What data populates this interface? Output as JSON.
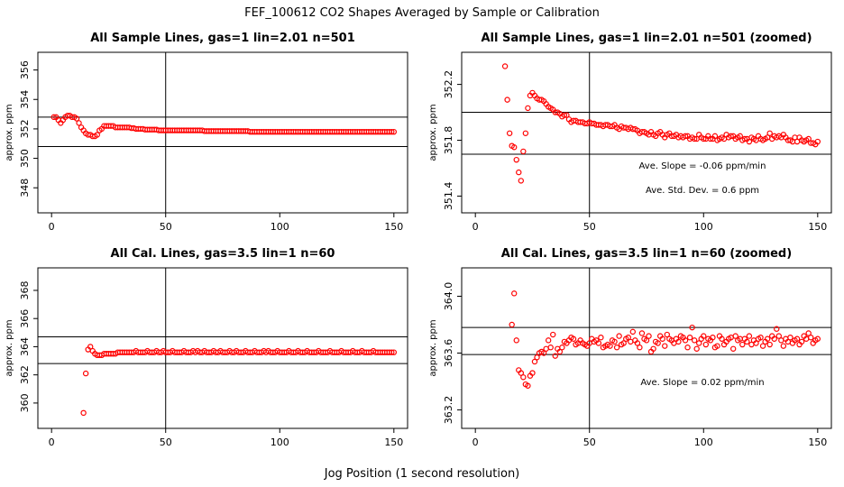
{
  "figure": {
    "title": "FEF_100612  CO2 Shapes Averaged by Sample or Calibration",
    "xlabel": "Jog Position (1 second resolution)"
  },
  "chart_data": [
    {
      "type": "scatter",
      "title": "All Sample Lines, gas=1 lin=2.01 n=501",
      "ylabel": "approx. ppm",
      "xlim": [
        -6,
        156
      ],
      "ylim": [
        346.3,
        357.2
      ],
      "xticks": [
        0,
        50,
        100,
        150
      ],
      "yticks": [
        348,
        350,
        352,
        354,
        356
      ],
      "hlines": [
        352.8,
        350.8
      ],
      "vline": 50,
      "annotations": [],
      "marker_color": "#ff0000",
      "x": [
        1,
        2,
        3,
        4,
        5,
        6,
        7,
        8,
        9,
        10,
        11,
        12,
        13,
        14,
        15,
        16,
        17,
        18,
        19,
        20,
        21,
        22,
        23,
        24,
        25,
        26,
        27,
        28,
        29,
        30,
        31,
        32,
        33,
        34,
        35,
        36,
        37,
        38,
        39,
        40,
        41,
        42,
        43,
        44,
        45,
        46,
        47,
        48,
        49,
        50,
        51,
        52,
        53,
        54,
        55,
        56,
        57,
        58,
        59,
        60,
        61,
        62,
        63,
        64,
        65,
        66,
        67,
        68,
        69,
        70,
        71,
        72,
        73,
        74,
        75,
        76,
        77,
        78,
        79,
        80,
        81,
        82,
        83,
        84,
        85,
        86,
        87,
        88,
        89,
        90,
        91,
        92,
        93,
        94,
        95,
        96,
        97,
        98,
        99,
        100,
        101,
        102,
        103,
        104,
        105,
        106,
        107,
        108,
        109,
        110,
        111,
        112,
        113,
        114,
        115,
        116,
        117,
        118,
        119,
        120,
        121,
        122,
        123,
        124,
        125,
        126,
        127,
        128,
        129,
        130,
        131,
        132,
        133,
        134,
        135,
        136,
        137,
        138,
        139,
        140,
        141,
        142,
        143,
        144,
        145,
        146,
        147,
        148,
        149,
        150
      ],
      "y": [
        352.8,
        352.8,
        352.6,
        352.4,
        352.6,
        352.8,
        352.9,
        352.9,
        352.8,
        352.8,
        352.7,
        352.4,
        352.1,
        351.9,
        351.7,
        351.6,
        351.6,
        351.5,
        351.5,
        351.6,
        351.9,
        352.0,
        352.2,
        352.2,
        352.2,
        352.2,
        352.2,
        352.1,
        352.1,
        352.1,
        352.1,
        352.1,
        352.1,
        352.1,
        352.05,
        352.05,
        352.0,
        352.0,
        352.0,
        352.0,
        351.95,
        351.95,
        351.95,
        351.95,
        351.95,
        351.95,
        351.9,
        351.9,
        351.9,
        351.9,
        351.9,
        351.9,
        351.9,
        351.9,
        351.9,
        351.9,
        351.9,
        351.9,
        351.9,
        351.9,
        351.9,
        351.9,
        351.9,
        351.9,
        351.9,
        351.9,
        351.85,
        351.85,
        351.85,
        351.85,
        351.85,
        351.85,
        351.85,
        351.85,
        351.85,
        351.85,
        351.85,
        351.85,
        351.85,
        351.85,
        351.85,
        351.85,
        351.85,
        351.85,
        351.85,
        351.85,
        351.8,
        351.8,
        351.8,
        351.8,
        351.8,
        351.8,
        351.8,
        351.8,
        351.8,
        351.8,
        351.8,
        351.8,
        351.8,
        351.8,
        351.8,
        351.8,
        351.8,
        351.8,
        351.8,
        351.8,
        351.8,
        351.8,
        351.8,
        351.8,
        351.8,
        351.8,
        351.8,
        351.8,
        351.8,
        351.8,
        351.8,
        351.8,
        351.8,
        351.8,
        351.8,
        351.8,
        351.8,
        351.8,
        351.8,
        351.8,
        351.8,
        351.8,
        351.8,
        351.8,
        351.8,
        351.8,
        351.8,
        351.8,
        351.8,
        351.8,
        351.8,
        351.8,
        351.8,
        351.8,
        351.8,
        351.8,
        351.8,
        351.8,
        351.8,
        351.8,
        351.8,
        351.8,
        351.8,
        351.8
      ]
    },
    {
      "type": "scatter",
      "title": "All Sample Lines, gas=1 lin=2.01 n=501 (zoomed)",
      "ylabel": "approx. ppm",
      "xlim": [
        -6,
        156
      ],
      "ylim": [
        351.28,
        352.43
      ],
      "xticks": [
        0,
        50,
        100,
        150
      ],
      "yticks": [
        351.4,
        351.8,
        352.2
      ],
      "hlines": [
        352.0,
        351.7
      ],
      "vline": 50,
      "annotations": [
        "Ave. Slope =  -0.06  ppm/min",
        "Ave. Std. Dev. =  0.6  ppm"
      ],
      "marker_color": "#ff0000",
      "x": [
        13,
        14,
        15,
        16,
        17,
        18,
        19,
        20,
        21,
        22,
        23,
        24,
        25,
        26,
        27,
        28,
        29,
        30,
        31,
        32,
        33,
        34,
        35,
        36,
        37,
        38,
        39,
        40,
        41,
        42,
        43,
        44,
        45,
        46,
        47,
        48,
        49,
        50,
        51,
        52,
        53,
        54,
        55,
        56,
        57,
        58,
        59,
        60,
        61,
        62,
        63,
        64,
        65,
        66,
        67,
        68,
        69,
        70,
        71,
        72,
        73,
        74,
        75,
        76,
        77,
        78,
        79,
        80,
        81,
        82,
        83,
        84,
        85,
        86,
        87,
        88,
        89,
        90,
        91,
        92,
        93,
        94,
        95,
        96,
        97,
        98,
        99,
        100,
        101,
        102,
        103,
        104,
        105,
        106,
        107,
        108,
        109,
        110,
        111,
        112,
        113,
        114,
        115,
        116,
        117,
        118,
        119,
        120,
        121,
        122,
        123,
        124,
        125,
        126,
        127,
        128,
        129,
        130,
        131,
        132,
        133,
        134,
        135,
        136,
        137,
        138,
        139,
        140,
        141,
        142,
        143,
        144,
        145,
        146,
        147,
        148,
        149,
        150
      ],
      "y": [
        352.33,
        352.09,
        351.85,
        351.76,
        351.75,
        351.66,
        351.57,
        351.51,
        351.72,
        351.85,
        352.03,
        352.12,
        352.14,
        352.12,
        352.1,
        352.09,
        352.09,
        352.08,
        352.06,
        352.04,
        352.03,
        352.02,
        352.0,
        352.0,
        351.99,
        351.97,
        351.98,
        351.98,
        351.95,
        351.93,
        351.94,
        351.94,
        351.93,
        351.93,
        351.93,
        351.92,
        351.92,
        351.93,
        351.92,
        351.92,
        351.91,
        351.91,
        351.91,
        351.9,
        351.91,
        351.91,
        351.9,
        351.9,
        351.91,
        351.89,
        351.88,
        351.9,
        351.89,
        351.89,
        351.88,
        351.89,
        351.88,
        351.88,
        351.87,
        351.85,
        351.86,
        351.86,
        351.85,
        351.84,
        351.86,
        351.84,
        351.83,
        351.85,
        351.86,
        351.84,
        351.82,
        351.84,
        351.85,
        351.83,
        351.83,
        351.84,
        351.82,
        351.83,
        351.82,
        351.83,
        351.83,
        351.81,
        351.82,
        351.81,
        351.81,
        351.84,
        351.82,
        351.81,
        351.81,
        351.83,
        351.81,
        351.81,
        351.83,
        351.8,
        351.81,
        351.82,
        351.81,
        351.84,
        351.82,
        351.83,
        351.83,
        351.81,
        351.82,
        351.83,
        351.8,
        351.81,
        351.81,
        351.79,
        351.82,
        351.81,
        351.8,
        351.83,
        351.81,
        351.8,
        351.81,
        351.82,
        351.85,
        351.81,
        351.83,
        351.82,
        351.83,
        351.82,
        351.84,
        351.82,
        351.8,
        351.8,
        351.79,
        351.82,
        351.79,
        351.82,
        351.8,
        351.79,
        351.8,
        351.81,
        351.78,
        351.78,
        351.77,
        351.79
      ]
    },
    {
      "type": "scatter",
      "title": "All Cal. Lines, gas=3.5 lin=1 n=60",
      "ylabel": "approx. ppm",
      "xlim": [
        -6,
        156
      ],
      "ylim": [
        358.2,
        369.6
      ],
      "xticks": [
        0,
        50,
        100,
        150
      ],
      "yticks": [
        360,
        362,
        364,
        366,
        368
      ],
      "hlines": [
        364.7,
        362.8
      ],
      "vline": 50,
      "annotations": [],
      "marker_color": "#ff0000",
      "x": [
        14,
        15,
        16,
        17,
        18,
        19,
        20,
        21,
        22,
        23,
        24,
        25,
        26,
        27,
        28,
        29,
        30,
        31,
        32,
        33,
        34,
        35,
        36,
        37,
        38,
        39,
        40,
        41,
        42,
        43,
        44,
        45,
        46,
        47,
        48,
        49,
        50,
        51,
        52,
        53,
        54,
        55,
        56,
        57,
        58,
        59,
        60,
        61,
        62,
        63,
        64,
        65,
        66,
        67,
        68,
        69,
        70,
        71,
        72,
        73,
        74,
        75,
        76,
        77,
        78,
        79,
        80,
        81,
        82,
        83,
        84,
        85,
        86,
        87,
        88,
        89,
        90,
        91,
        92,
        93,
        94,
        95,
        96,
        97,
        98,
        99,
        100,
        101,
        102,
        103,
        104,
        105,
        106,
        107,
        108,
        109,
        110,
        111,
        112,
        113,
        114,
        115,
        116,
        117,
        118,
        119,
        120,
        121,
        122,
        123,
        124,
        125,
        126,
        127,
        128,
        129,
        130,
        131,
        132,
        133,
        134,
        135,
        136,
        137,
        138,
        139,
        140,
        141,
        142,
        143,
        144,
        145,
        146,
        147,
        148,
        149,
        150
      ],
      "y": [
        359.3,
        362.1,
        363.8,
        364.0,
        363.7,
        363.5,
        363.4,
        363.4,
        363.4,
        363.5,
        363.5,
        363.5,
        363.5,
        363.5,
        363.5,
        363.6,
        363.6,
        363.6,
        363.6,
        363.6,
        363.6,
        363.6,
        363.6,
        363.7,
        363.6,
        363.6,
        363.6,
        363.6,
        363.7,
        363.6,
        363.6,
        363.6,
        363.7,
        363.6,
        363.6,
        363.7,
        363.6,
        363.6,
        363.6,
        363.7,
        363.6,
        363.6,
        363.6,
        363.6,
        363.7,
        363.6,
        363.6,
        363.6,
        363.7,
        363.6,
        363.7,
        363.6,
        363.6,
        363.7,
        363.6,
        363.6,
        363.6,
        363.7,
        363.6,
        363.6,
        363.7,
        363.6,
        363.6,
        363.6,
        363.7,
        363.6,
        363.6,
        363.7,
        363.6,
        363.6,
        363.6,
        363.7,
        363.6,
        363.6,
        363.6,
        363.7,
        363.6,
        363.6,
        363.6,
        363.7,
        363.6,
        363.7,
        363.6,
        363.6,
        363.6,
        363.7,
        363.6,
        363.6,
        363.6,
        363.6,
        363.7,
        363.6,
        363.6,
        363.6,
        363.7,
        363.6,
        363.6,
        363.6,
        363.7,
        363.6,
        363.6,
        363.6,
        363.6,
        363.7,
        363.6,
        363.6,
        363.6,
        363.6,
        363.7,
        363.6,
        363.6,
        363.6,
        363.6,
        363.7,
        363.6,
        363.6,
        363.6,
        363.6,
        363.7,
        363.6,
        363.6,
        363.6,
        363.7,
        363.6,
        363.6,
        363.6,
        363.6,
        363.7,
        363.6,
        363.6,
        363.6,
        363.6,
        363.6,
        363.6,
        363.6,
        363.6,
        363.6
      ]
    },
    {
      "type": "scatter",
      "title": "All Cal. Lines, gas=3.5 lin=1 n=60 (zoomed)",
      "ylabel": "approx. ppm",
      "xlim": [
        -6,
        156
      ],
      "ylim": [
        363.07,
        364.2
      ],
      "xticks": [
        0,
        50,
        100,
        150
      ],
      "yticks": [
        363.2,
        363.6,
        364.0
      ],
      "hlines": [
        363.78,
        363.59
      ],
      "vline": 50,
      "annotations": [
        "Ave. Slope =  0.02  ppm/min"
      ],
      "marker_color": "#ff0000",
      "x": [
        16,
        17,
        18,
        19,
        20,
        21,
        22,
        23,
        24,
        25,
        26,
        27,
        28,
        29,
        30,
        31,
        32,
        33,
        34,
        35,
        36,
        37,
        38,
        39,
        40,
        41,
        42,
        43,
        44,
        45,
        46,
        47,
        48,
        49,
        50,
        51,
        52,
        53,
        54,
        55,
        56,
        57,
        58,
        59,
        60,
        61,
        62,
        63,
        64,
        65,
        66,
        67,
        68,
        69,
        70,
        71,
        72,
        73,
        74,
        75,
        76,
        77,
        78,
        79,
        80,
        81,
        82,
        83,
        84,
        85,
        86,
        87,
        88,
        89,
        90,
        91,
        92,
        93,
        94,
        95,
        96,
        97,
        98,
        99,
        100,
        101,
        102,
        103,
        104,
        105,
        106,
        107,
        108,
        109,
        110,
        111,
        112,
        113,
        114,
        115,
        116,
        117,
        118,
        119,
        120,
        121,
        122,
        123,
        124,
        125,
        126,
        127,
        128,
        129,
        130,
        131,
        132,
        133,
        134,
        135,
        136,
        137,
        138,
        139,
        140,
        141,
        142,
        143,
        144,
        145,
        146,
        147,
        148,
        149,
        150
      ],
      "y": [
        363.8,
        364.02,
        363.69,
        363.48,
        363.46,
        363.43,
        363.38,
        363.37,
        363.44,
        363.46,
        363.54,
        363.57,
        363.6,
        363.61,
        363.6,
        363.63,
        363.69,
        363.64,
        363.73,
        363.58,
        363.63,
        363.61,
        363.64,
        363.68,
        363.67,
        363.69,
        363.71,
        363.7,
        363.66,
        363.67,
        363.69,
        363.67,
        363.66,
        363.65,
        363.67,
        363.7,
        363.68,
        363.69,
        363.67,
        363.71,
        363.64,
        363.65,
        363.66,
        363.65,
        363.69,
        363.68,
        363.64,
        363.72,
        363.66,
        363.67,
        363.7,
        363.71,
        363.68,
        363.75,
        363.69,
        363.67,
        363.64,
        363.74,
        363.7,
        363.69,
        363.72,
        363.61,
        363.63,
        363.68,
        363.67,
        363.72,
        363.7,
        363.65,
        363.73,
        363.7,
        363.69,
        363.67,
        363.7,
        363.68,
        363.72,
        363.71,
        363.69,
        363.64,
        363.71,
        363.78,
        363.69,
        363.63,
        363.67,
        363.7,
        363.72,
        363.66,
        363.7,
        363.69,
        363.71,
        363.64,
        363.65,
        363.72,
        363.7,
        363.66,
        363.68,
        363.7,
        363.71,
        363.63,
        363.72,
        363.69,
        363.7,
        363.66,
        363.7,
        363.68,
        363.72,
        363.66,
        363.69,
        363.67,
        363.7,
        363.71,
        363.65,
        363.68,
        363.7,
        363.66,
        363.72,
        363.7,
        363.77,
        363.72,
        363.69,
        363.65,
        363.7,
        363.68,
        363.71,
        363.67,
        363.69,
        363.7,
        363.66,
        363.68,
        363.72,
        363.7,
        363.74,
        363.71,
        363.67,
        363.69,
        363.7
      ]
    }
  ]
}
